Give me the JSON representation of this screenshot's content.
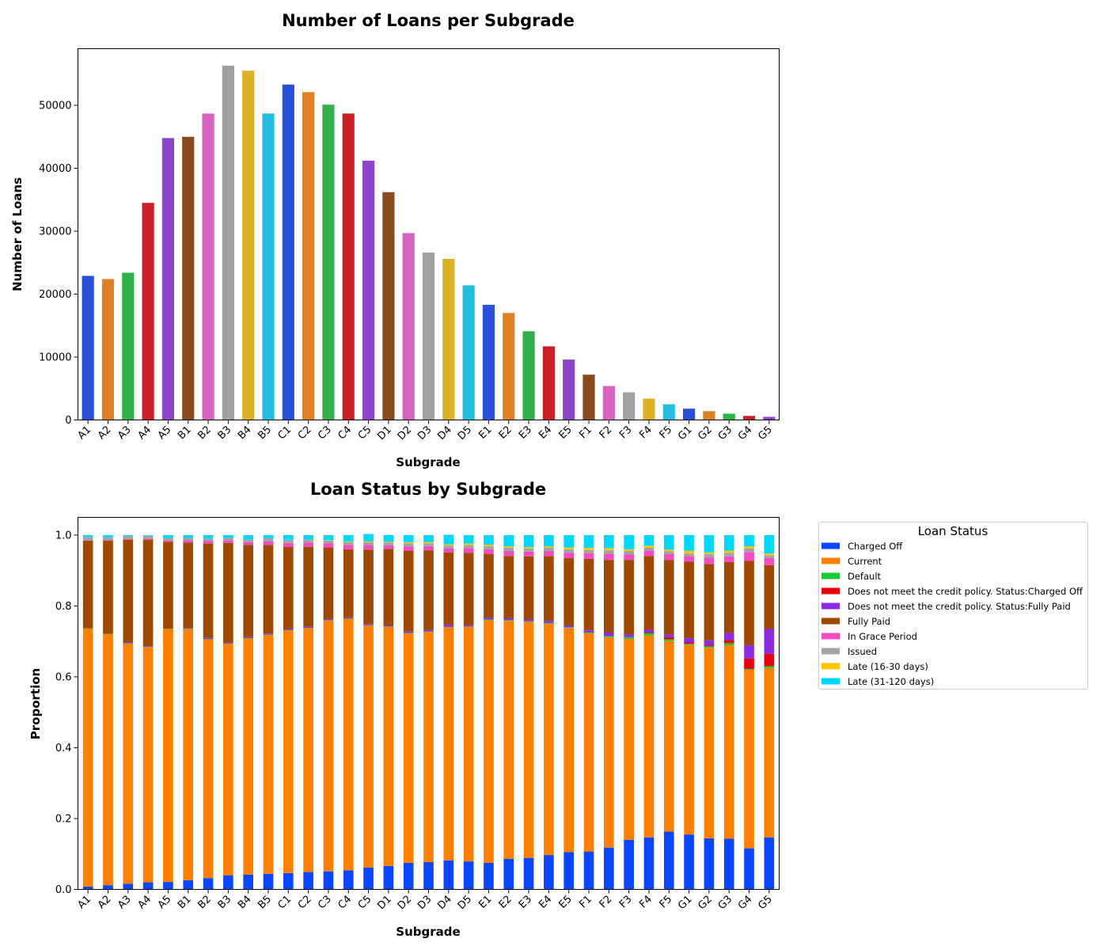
{
  "chart_data": [
    {
      "type": "bar",
      "title": "Number of Loans per Subgrade",
      "xlabel": "Subgrade",
      "ylabel": "Number of Loans",
      "ylim": [
        0,
        59000
      ],
      "yticks": [
        0,
        10000,
        20000,
        30000,
        40000,
        50000
      ],
      "ytick_labels": [
        "0",
        "10000",
        "20000",
        "30000",
        "40000",
        "50000"
      ],
      "grid": false,
      "categories": [
        "A1",
        "A2",
        "A3",
        "A4",
        "A5",
        "B1",
        "B2",
        "B3",
        "B4",
        "B5",
        "C1",
        "C2",
        "C3",
        "C4",
        "C5",
        "D1",
        "D2",
        "D3",
        "D4",
        "D5",
        "E1",
        "E2",
        "E3",
        "E4",
        "E5",
        "F1",
        "F2",
        "F3",
        "F4",
        "F5",
        "G1",
        "G2",
        "G3",
        "G4",
        "G5"
      ],
      "values": [
        22900,
        22400,
        23400,
        34500,
        44800,
        45000,
        48700,
        56300,
        55500,
        48700,
        53300,
        52100,
        50100,
        48700,
        41200,
        36200,
        29700,
        26600,
        25600,
        21400,
        18300,
        17000,
        14100,
        11700,
        9600,
        7200,
        5400,
        4400,
        3400,
        2500,
        1800,
        1400,
        1000,
        650,
        500
      ],
      "bar_colors": [
        "#2a4fd8",
        "#e08024",
        "#2fb04a",
        "#c91f27",
        "#8c44cb",
        "#8a4b1c",
        "#d763c0",
        "#a0a0a0",
        "#deb023",
        "#22c0de"
      ]
    },
    {
      "type": "bar",
      "stacked": true,
      "title": "Loan Status by Subgrade",
      "xlabel": "Subgrade",
      "ylabel": "Proportion",
      "ylim": [
        0,
        1.05
      ],
      "yticks": [
        0,
        0.2,
        0.4,
        0.6,
        0.8,
        1.0
      ],
      "ytick_labels": [
        "0.0",
        "0.2",
        "0.4",
        "0.6",
        "0.8",
        "1.0"
      ],
      "grid": false,
      "legend": {
        "title": "Loan Status",
        "placement": "outside-right"
      },
      "categories": [
        "A1",
        "A2",
        "A3",
        "A4",
        "A5",
        "B1",
        "B2",
        "B3",
        "B4",
        "B5",
        "C1",
        "C2",
        "C3",
        "C4",
        "C5",
        "D1",
        "D2",
        "D3",
        "D4",
        "D5",
        "E1",
        "E2",
        "E3",
        "E4",
        "E5",
        "F1",
        "F2",
        "F3",
        "F4",
        "F5",
        "G1",
        "G2",
        "G3",
        "G4",
        "G5"
      ],
      "series": [
        {
          "name": "Charged Off",
          "color": "#0a45ff",
          "values": [
            0.008,
            0.012,
            0.016,
            0.02,
            0.021,
            0.026,
            0.032,
            0.04,
            0.042,
            0.044,
            0.046,
            0.049,
            0.051,
            0.054,
            0.062,
            0.066,
            0.075,
            0.077,
            0.082,
            0.079,
            0.075,
            0.086,
            0.089,
            0.097,
            0.105,
            0.107,
            0.118,
            0.14,
            0.147,
            0.163,
            0.155,
            0.144,
            0.143,
            0.116,
            0.147
          ]
        },
        {
          "name": "Current",
          "color": "#ff7f00",
          "values": [
            0.728,
            0.708,
            0.678,
            0.664,
            0.714,
            0.709,
            0.674,
            0.653,
            0.666,
            0.674,
            0.685,
            0.688,
            0.708,
            0.71,
            0.683,
            0.675,
            0.648,
            0.65,
            0.658,
            0.662,
            0.685,
            0.672,
            0.666,
            0.653,
            0.633,
            0.616,
            0.594,
            0.567,
            0.57,
            0.538,
            0.535,
            0.538,
            0.546,
            0.504,
            0.478
          ]
        },
        {
          "name": "Default",
          "color": "#1ac938",
          "values": [
            0.001,
            0.001,
            0.001,
            0.001,
            0.001,
            0.001,
            0.001,
            0.001,
            0.001,
            0.001,
            0.001,
            0.001,
            0.001,
            0.001,
            0.001,
            0.001,
            0.001,
            0.001,
            0.001,
            0.001,
            0.002,
            0.002,
            0.002,
            0.002,
            0.002,
            0.002,
            0.003,
            0.005,
            0.006,
            0.005,
            0.003,
            0.004,
            0.006,
            0.002,
            0.005
          ]
        },
        {
          "name": "Does not meet the credit policy. Status:Charged Off",
          "color": "#e8000b",
          "values": [
            0,
            0,
            0,
            0,
            0,
            0,
            0,
            0,
            0,
            0,
            0,
            0,
            0,
            0,
            0,
            0,
            0,
            0,
            0,
            0,
            0,
            0,
            0,
            0,
            0,
            0,
            0,
            0,
            0.002,
            0.006,
            0.004,
            0.003,
            0.009,
            0.03,
            0.035
          ]
        },
        {
          "name": "Does not meet the credit policy. Status:Fully Paid",
          "color": "#8b2be2",
          "values": [
            0,
            0,
            0.002,
            0.002,
            0,
            0.002,
            0.003,
            0.002,
            0.003,
            0.003,
            0.003,
            0.003,
            0.003,
            0.003,
            0.003,
            0.003,
            0.004,
            0.004,
            0.006,
            0.004,
            0.005,
            0.005,
            0.005,
            0.006,
            0.005,
            0.006,
            0.01,
            0.008,
            0.008,
            0.008,
            0.012,
            0.014,
            0.02,
            0.037,
            0.07
          ]
        },
        {
          "name": "Fully Paid",
          "color": "#9f4800",
          "values": [
            0.247,
            0.263,
            0.29,
            0.3,
            0.245,
            0.241,
            0.266,
            0.282,
            0.26,
            0.25,
            0.232,
            0.226,
            0.202,
            0.192,
            0.21,
            0.216,
            0.228,
            0.225,
            0.204,
            0.204,
            0.18,
            0.176,
            0.178,
            0.183,
            0.19,
            0.202,
            0.205,
            0.21,
            0.208,
            0.21,
            0.216,
            0.215,
            0.2,
            0.238,
            0.18
          ]
        },
        {
          "name": "In Grace Period",
          "color": "#f14cc1",
          "values": [
            0.001,
            0.002,
            0.002,
            0.003,
            0.004,
            0.006,
            0.007,
            0.007,
            0.008,
            0.01,
            0.011,
            0.012,
            0.012,
            0.012,
            0.013,
            0.01,
            0.012,
            0.012,
            0.012,
            0.013,
            0.013,
            0.014,
            0.013,
            0.014,
            0.015,
            0.016,
            0.017,
            0.015,
            0.015,
            0.017,
            0.016,
            0.018,
            0.016,
            0.025,
            0.02
          ]
        },
        {
          "name": "Issued",
          "color": "#a3a3a3",
          "values": [
            0.01,
            0.008,
            0.008,
            0.008,
            0.007,
            0.007,
            0.007,
            0.007,
            0.008,
            0.009,
            0.009,
            0.009,
            0.008,
            0.008,
            0.008,
            0.008,
            0.009,
            0.008,
            0.008,
            0.009,
            0.009,
            0.009,
            0.009,
            0.009,
            0.01,
            0.009,
            0.01,
            0.01,
            0.008,
            0.007,
            0.007,
            0.01,
            0.01,
            0.01,
            0.008
          ]
        },
        {
          "name": "Late (16-30 days)",
          "color": "#ffc400",
          "values": [
            0,
            0,
            0,
            0,
            0,
            0,
            0,
            0,
            0,
            0,
            0,
            0,
            0.001,
            0.002,
            0.002,
            0.002,
            0.003,
            0.003,
            0.003,
            0.004,
            0.004,
            0.004,
            0.004,
            0.004,
            0.005,
            0.006,
            0.006,
            0.005,
            0.006,
            0.005,
            0.008,
            0.005,
            0.006,
            0.006,
            0.005
          ]
        },
        {
          "name": "Late (31-120 days)",
          "color": "#00d7ff",
          "values": [
            0.005,
            0.006,
            0.003,
            0.002,
            0.008,
            0.008,
            0.01,
            0.008,
            0.012,
            0.009,
            0.013,
            0.012,
            0.014,
            0.018,
            0.021,
            0.019,
            0.02,
            0.02,
            0.027,
            0.024,
            0.027,
            0.032,
            0.034,
            0.032,
            0.035,
            0.036,
            0.037,
            0.04,
            0.03,
            0.041,
            0.044,
            0.049,
            0.044,
            0.032,
            0.052
          ]
        }
      ]
    }
  ]
}
